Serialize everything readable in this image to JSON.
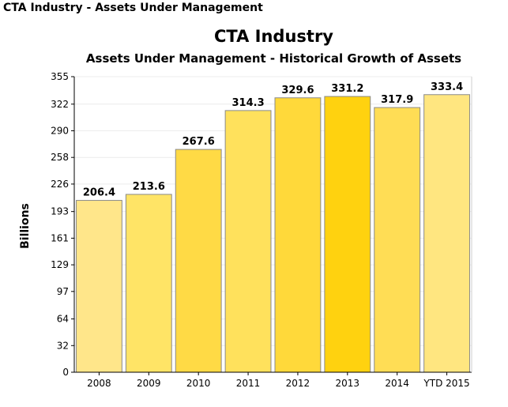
{
  "page_header": "CTA Industry - Assets Under Management",
  "chart_data": {
    "type": "bar",
    "title": "CTA Industry",
    "subtitle": "Assets Under Management - Historical Growth of Assets",
    "xlabel": "",
    "ylabel": "Billions",
    "categories": [
      "2008",
      "2009",
      "2010",
      "2011",
      "2012",
      "2013",
      "2014",
      "YTD 2015"
    ],
    "values": [
      206.4,
      213.6,
      267.6,
      314.3,
      329.6,
      331.2,
      317.9,
      333.4
    ],
    "value_labels": [
      "206.4",
      "213.6",
      "267.6",
      "314.3",
      "329.6",
      "331.2",
      "317.9",
      "333.4"
    ],
    "yticks": [
      "0",
      "32",
      "64",
      "97",
      "129",
      "161",
      "193",
      "226",
      "258",
      "290",
      "322",
      "355"
    ],
    "ylim": [
      0,
      355
    ],
    "grid": true,
    "legend": "none",
    "bar_colors": [
      "#FFE68A",
      "#FFE466",
      "#FFDA45",
      "#FFE15C",
      "#FFD93A",
      "#FFD20F",
      "#FFDD55",
      "#FFE680"
    ]
  }
}
